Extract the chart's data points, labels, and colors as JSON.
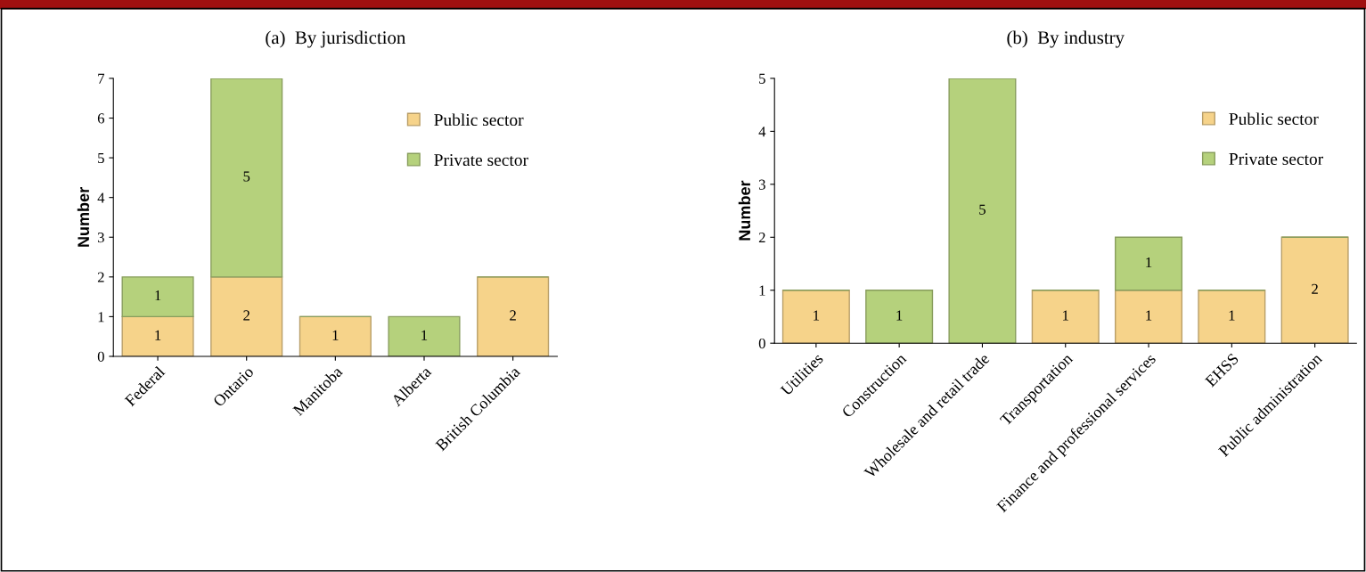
{
  "chart_data": [
    {
      "type": "bar",
      "title": "(a)  By jurisdiction",
      "ylabel": "Number",
      "categories": [
        "Federal",
        "Ontario",
        "Manitoba",
        "Alberta",
        "British Columbia"
      ],
      "stacked": true,
      "ylim": [
        0,
        7
      ],
      "yticks": [
        0,
        1,
        2,
        3,
        4,
        5,
        6,
        7
      ],
      "grid": false,
      "legend": "top right",
      "data_labels": true,
      "series": [
        {
          "name": "Public sector",
          "color": "#f6d38a",
          "values": [
            1,
            2,
            1,
            null,
            2
          ]
        },
        {
          "name": "Private sector",
          "color": "#b5d17c",
          "values": [
            1,
            5,
            null,
            1,
            null
          ]
        }
      ]
    },
    {
      "type": "bar",
      "title": "(b)  By industry",
      "ylabel": "Number",
      "categories": [
        "Utilities",
        "Construction",
        "Wholesale and retail trade",
        "Transportation",
        "Finance and professional services",
        "EHSS",
        "Public administration"
      ],
      "stacked": true,
      "ylim": [
        0,
        5
      ],
      "yticks": [
        0,
        1,
        2,
        3,
        4,
        5
      ],
      "grid": false,
      "legend": "top right",
      "data_labels": true,
      "series": [
        {
          "name": "Public sector",
          "color": "#f6d38a",
          "values": [
            1,
            null,
            null,
            1,
            1,
            1,
            2
          ]
        },
        {
          "name": "Private sector",
          "color": "#b5d17c",
          "values": [
            null,
            1,
            5,
            null,
            1,
            null,
            null
          ]
        }
      ]
    }
  ]
}
